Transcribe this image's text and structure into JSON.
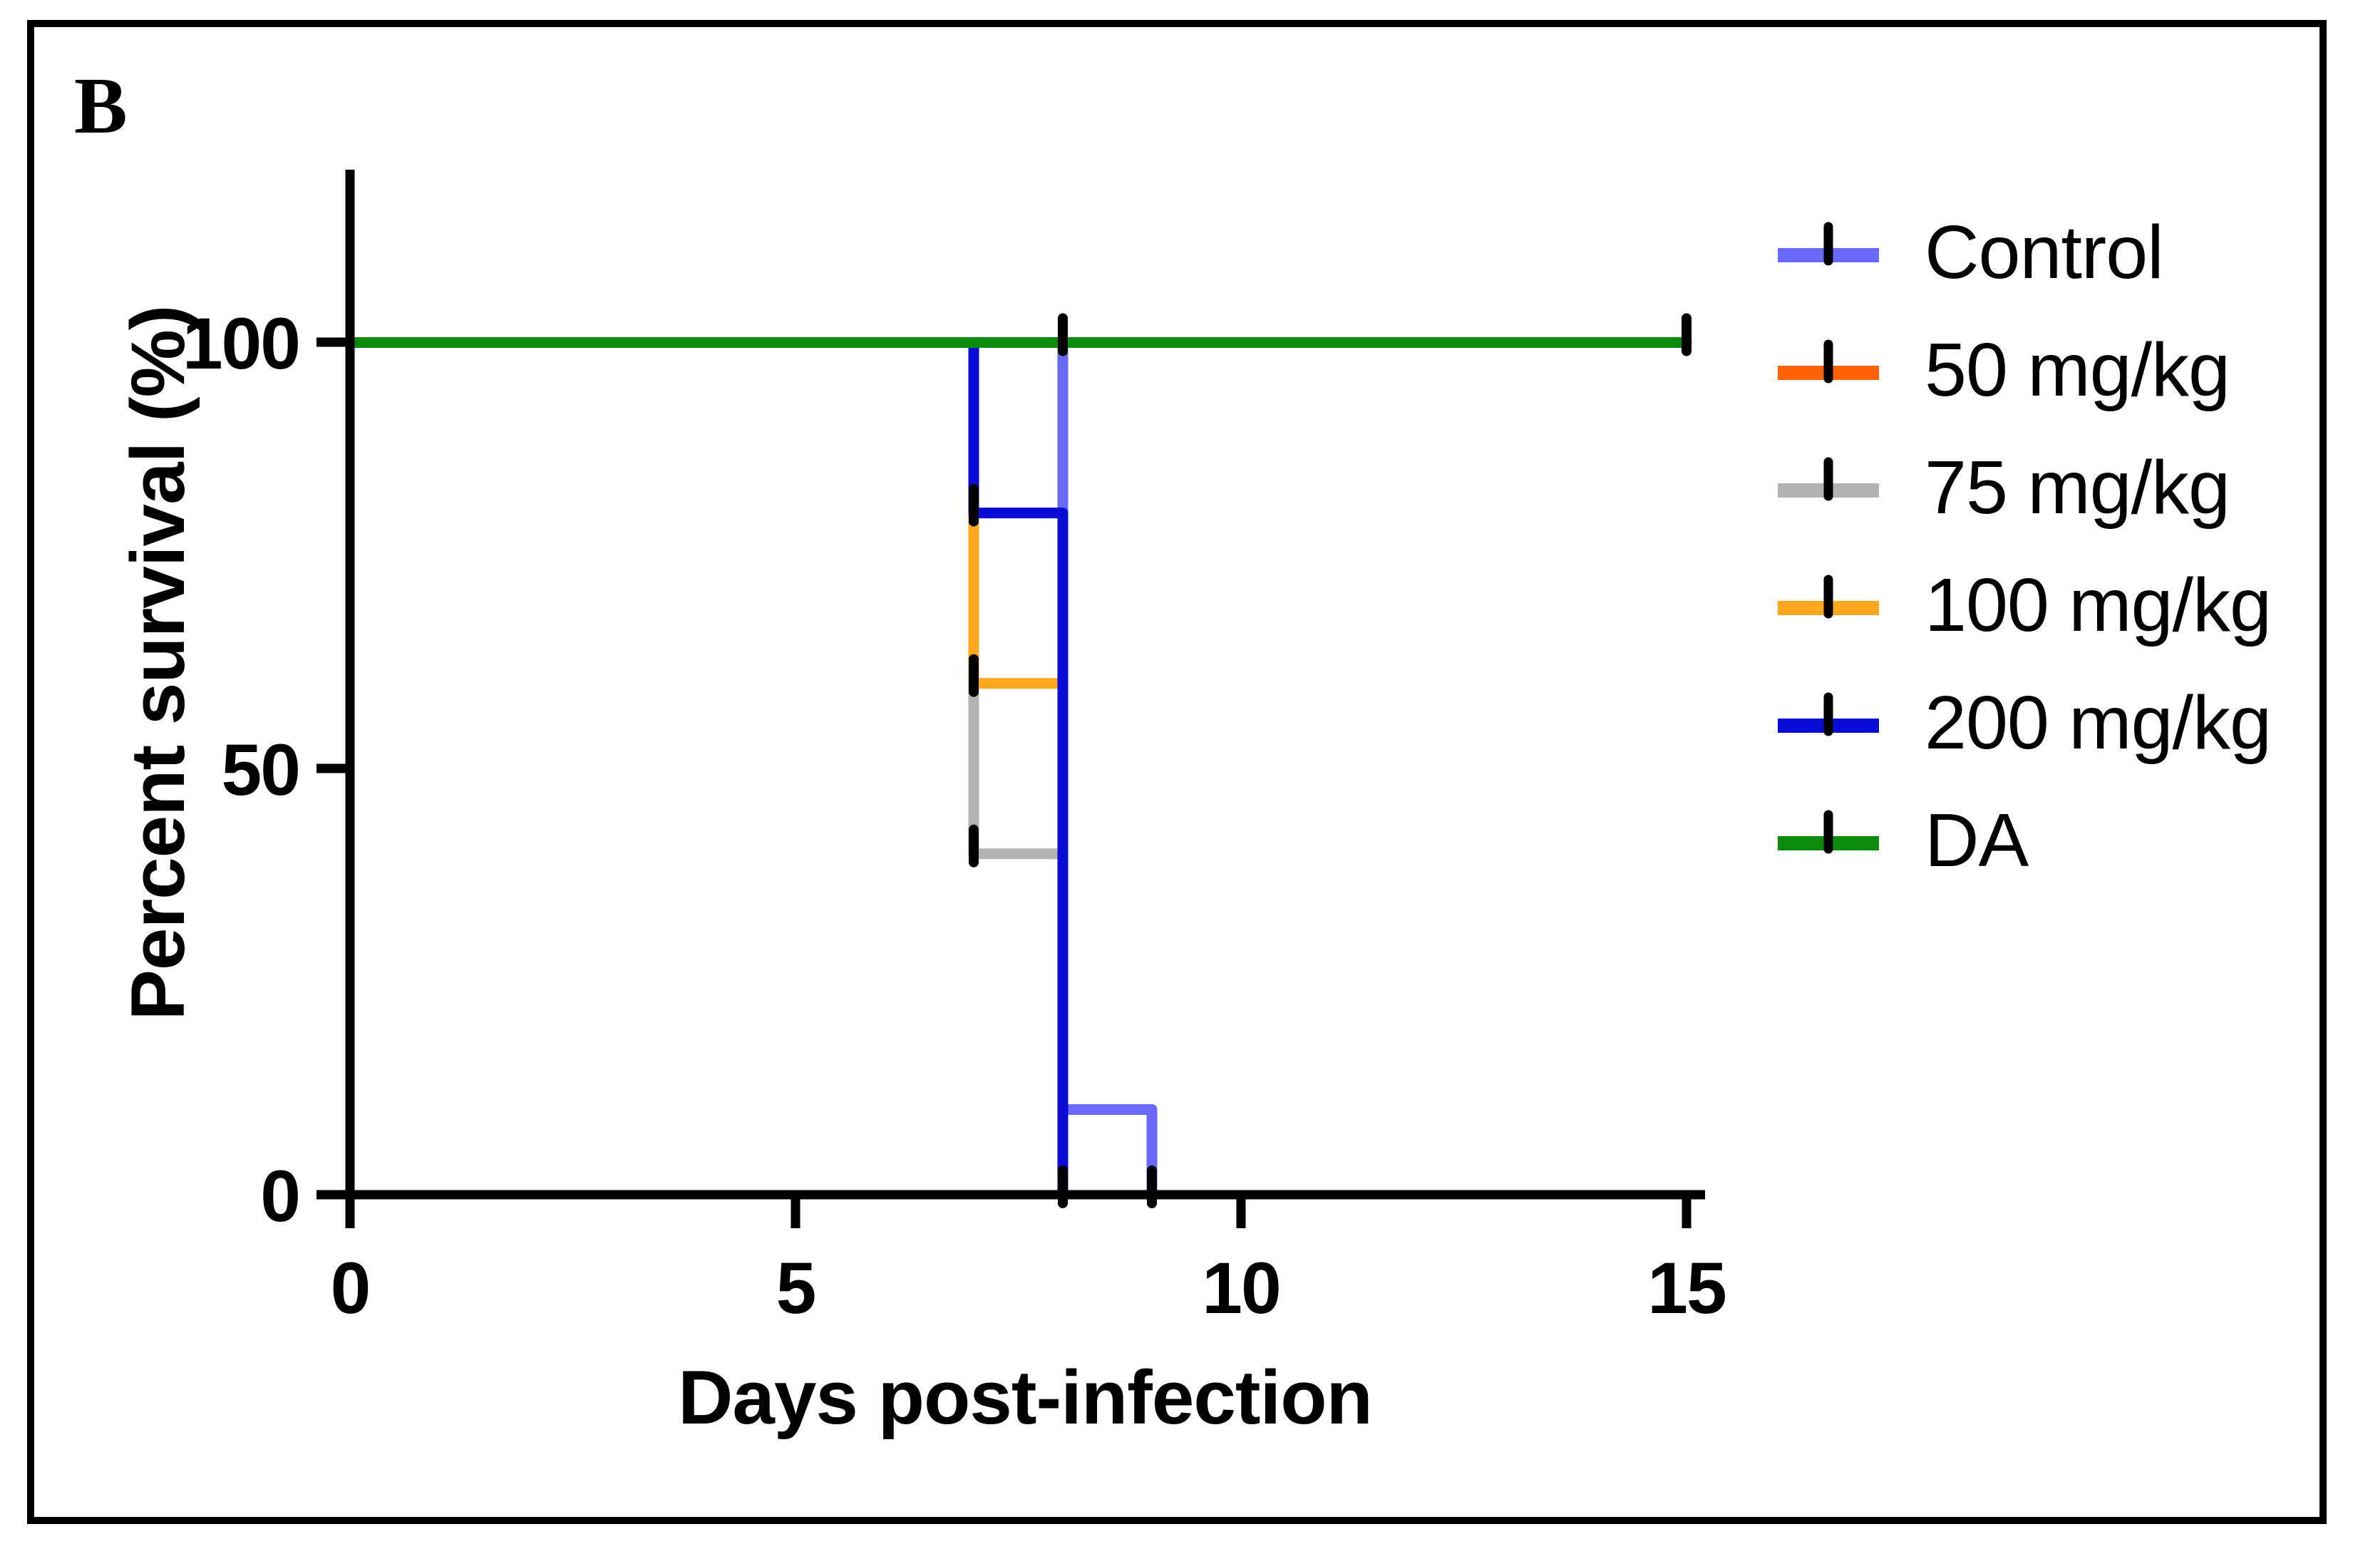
{
  "panel_label": "B",
  "border_color": "#000000",
  "background_color": "#ffffff",
  "chart_data": {
    "type": "line",
    "subtype": "kaplan-meier-survival-step-curves",
    "title": "",
    "xlabel": "Days post-infection",
    "ylabel": "Percent survival (%)",
    "xlim": [
      0,
      15
    ],
    "ylim": [
      0,
      100
    ],
    "grid": false,
    "legend_position": "right",
    "axis_color": "#000000",
    "x_ticks": [
      0,
      5,
      10,
      15
    ],
    "y_ticks": [
      0,
      50,
      100
    ],
    "x_tick_labels": [
      "0",
      "5",
      "10",
      "15"
    ],
    "y_tick_labels": [
      "0",
      "50",
      "100"
    ],
    "series": [
      {
        "name": "Control",
        "color": "#6A6AFA",
        "steps": [
          [
            0,
            100
          ],
          [
            8,
            100
          ],
          [
            8,
            10
          ],
          [
            9,
            10
          ],
          [
            9,
            0
          ]
        ]
      },
      {
        "name": "50 mg/kg",
        "color": "#FF6103",
        "steps": [
          [
            0,
            100
          ],
          [
            8,
            100
          ],
          [
            8,
            0
          ]
        ]
      },
      {
        "name": "75 mg/kg",
        "color": "#B3B3B3",
        "steps": [
          [
            0,
            100
          ],
          [
            7,
            100
          ],
          [
            7,
            40
          ],
          [
            8,
            40
          ],
          [
            8,
            0
          ]
        ]
      },
      {
        "name": "100 mg/kg",
        "color": "#FFA81F",
        "steps": [
          [
            0,
            100
          ],
          [
            7,
            100
          ],
          [
            7,
            60
          ],
          [
            8,
            60
          ],
          [
            8,
            0
          ]
        ]
      },
      {
        "name": "200 mg/kg",
        "color": "#0B0BD6",
        "steps": [
          [
            0,
            100
          ],
          [
            7,
            100
          ],
          [
            7,
            80
          ],
          [
            8,
            80
          ],
          [
            8,
            0
          ]
        ]
      },
      {
        "name": "DA",
        "color": "#0B8A0B",
        "steps": [
          [
            0,
            100
          ],
          [
            15,
            100
          ]
        ]
      }
    ],
    "event_mark_color": "#000000",
    "event_marks": [
      {
        "day": 8,
        "pct": 100
      },
      {
        "day": 15,
        "pct": 100
      },
      {
        "day": 7,
        "pct": 80
      },
      {
        "day": 7,
        "pct": 60
      },
      {
        "day": 7,
        "pct": 40
      },
      {
        "day": 8,
        "pct": 0
      },
      {
        "day": 9,
        "pct": 0
      }
    ]
  }
}
